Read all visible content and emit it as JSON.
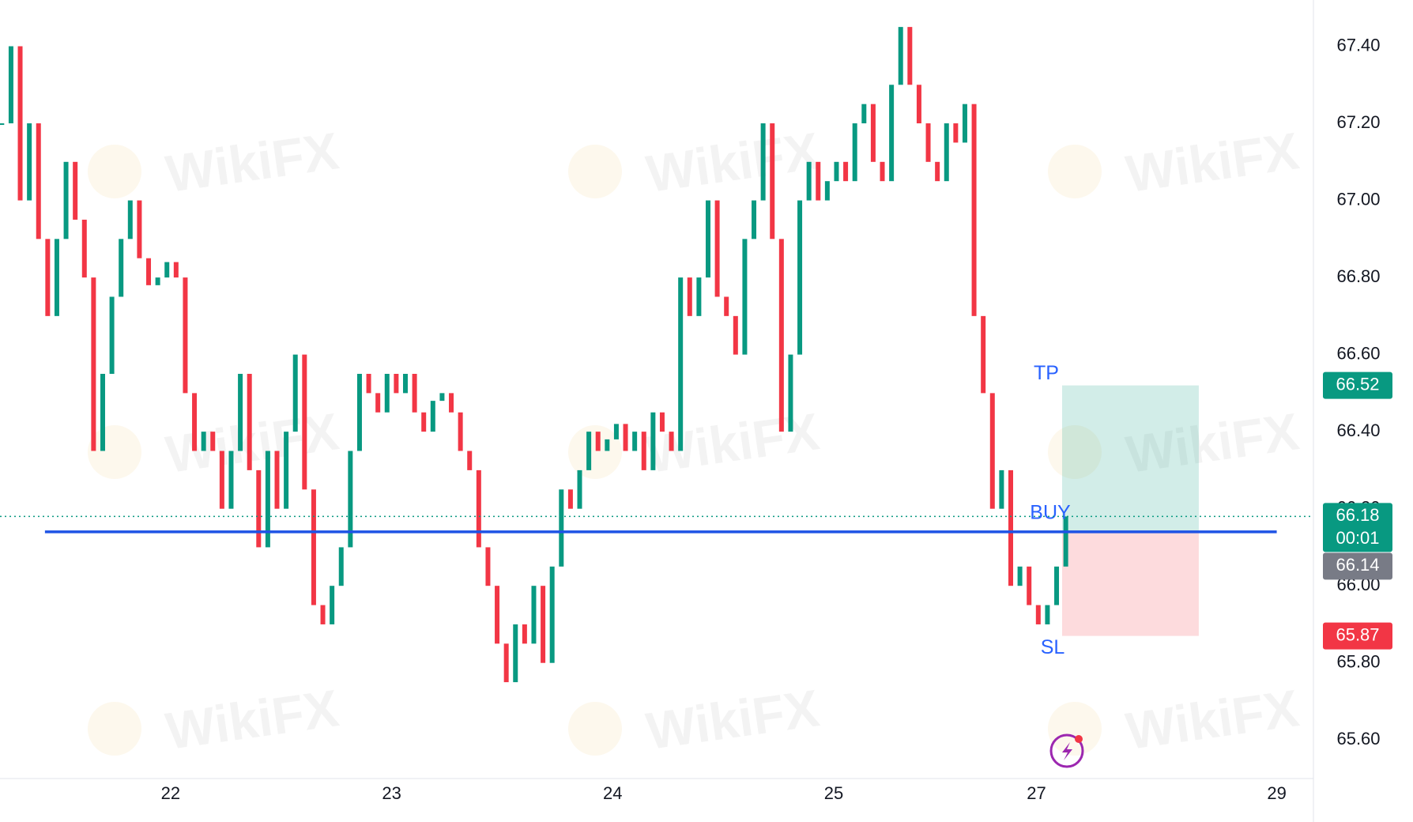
{
  "chart_data": {
    "type": "candlestick",
    "watermark": "WikiFX",
    "x": [
      0,
      1,
      2,
      3,
      4,
      5,
      6,
      7,
      8,
      9,
      10,
      11,
      12,
      13,
      14,
      15,
      16,
      17,
      18,
      19,
      20,
      21,
      22,
      23,
      24,
      25,
      26,
      27,
      28,
      29,
      30,
      31,
      32,
      33,
      34,
      35,
      36,
      37,
      38,
      39,
      40,
      41,
      42,
      43,
      44,
      45,
      46,
      47,
      48,
      49,
      50,
      51,
      52,
      53,
      54,
      55,
      56,
      57,
      58,
      59,
      60,
      61,
      62,
      63,
      64,
      65,
      66,
      67,
      68,
      69,
      70,
      71,
      72,
      73,
      74,
      75,
      76,
      77,
      78,
      79,
      80,
      81,
      82,
      83,
      84,
      85,
      86,
      87,
      88,
      89,
      90,
      91,
      92,
      93,
      94,
      95,
      96,
      97,
      98,
      99,
      100,
      101,
      102,
      103,
      104,
      105,
      106,
      107,
      108,
      109,
      110,
      111,
      112,
      113,
      114,
      115,
      116
    ],
    "values": [
      67.2,
      67.4,
      67.0,
      67.2,
      66.9,
      66.7,
      66.9,
      67.1,
      66.95,
      66.8,
      66.35,
      66.55,
      66.75,
      66.9,
      67.0,
      66.85,
      66.78,
      66.8,
      66.84,
      66.8,
      66.5,
      66.35,
      66.4,
      66.35,
      66.2,
      66.35,
      66.55,
      66.3,
      66.1,
      66.35,
      66.2,
      66.4,
      66.6,
      66.25,
      65.95,
      65.9,
      66.0,
      66.1,
      66.35,
      66.55,
      66.5,
      66.45,
      66.55,
      66.5,
      66.55,
      66.45,
      66.4,
      66.48,
      66.5,
      66.45,
      66.35,
      66.3,
      66.1,
      66.0,
      65.85,
      65.75,
      65.9,
      65.85,
      66.0,
      65.8,
      66.05,
      66.25,
      66.2,
      66.3,
      66.4,
      66.35,
      66.38,
      66.42,
      66.35,
      66.4,
      66.3,
      66.45,
      66.4,
      66.35,
      66.8,
      66.7,
      66.8,
      67.0,
      66.75,
      66.7,
      66.6,
      66.9,
      67.0,
      67.2,
      66.9,
      66.4,
      66.6,
      67.0,
      67.1,
      67.0,
      67.05,
      67.1,
      67.05,
      67.2,
      67.25,
      67.1,
      67.05,
      67.3,
      67.45,
      67.3,
      67.2,
      67.1,
      67.05,
      67.2,
      67.15,
      67.25,
      66.7,
      66.5,
      66.2,
      66.3,
      66.0,
      66.05,
      65.95,
      65.9,
      65.95,
      66.05,
      66.18
    ],
    "up_color": "#089981",
    "down_color": "#f23645",
    "xlim": [
      -0.2,
      143
    ],
    "xticks": [
      {
        "value": 18.4,
        "label": "22"
      },
      {
        "value": 42.5,
        "label": "23"
      },
      {
        "value": 66.6,
        "label": "24"
      },
      {
        "value": 90.7,
        "label": "25"
      },
      {
        "value": 112.8,
        "label": "27"
      },
      {
        "value": 139,
        "label": "29"
      }
    ],
    "ylim": [
      65.5,
      67.52
    ],
    "yticks": [
      {
        "value": 65.6,
        "label": "65.60"
      },
      {
        "value": 65.8,
        "label": "65.80"
      },
      {
        "value": 66.0,
        "label": "66.00"
      },
      {
        "value": 66.2,
        "label": "66.20"
      },
      {
        "value": 66.4,
        "label": "66.40"
      },
      {
        "value": 66.6,
        "label": "66.60"
      },
      {
        "value": 66.8,
        "label": "66.80"
      },
      {
        "value": 67.0,
        "label": "67.00"
      },
      {
        "value": 67.2,
        "label": "67.20"
      },
      {
        "value": 67.4,
        "label": "67.40"
      }
    ],
    "grid": true,
    "last_price": {
      "value": 66.18,
      "countdown": "00:01",
      "color": "#089981"
    },
    "horizontal_line": {
      "value": 66.14,
      "x": [
        4.7,
        139
      ],
      "color": "#1e53e5"
    },
    "position": {
      "entry": 66.14,
      "tp": 66.52,
      "sl": 65.87,
      "x": [
        115.6,
        130.5
      ],
      "tp_label": "TP",
      "entry_label": "BUY",
      "sl_label": "SL",
      "tp_color": "#089981",
      "sl_color": "#f23645"
    }
  }
}
